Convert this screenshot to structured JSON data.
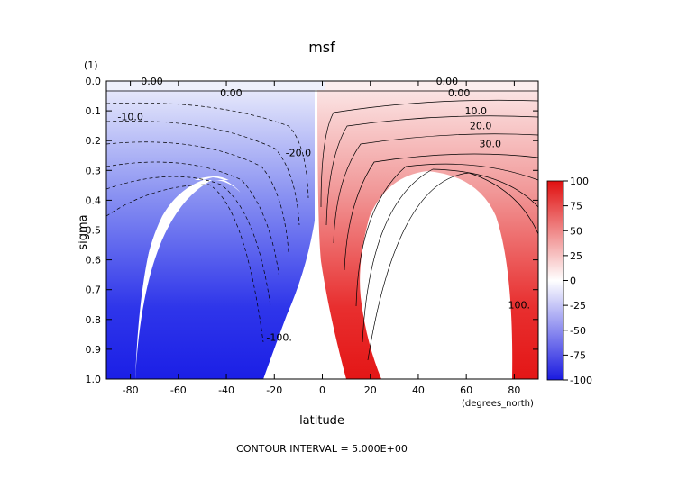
{
  "chart_data": {
    "type": "heatmap",
    "title": "msf",
    "xlabel": "latitude",
    "ylabel": "sigma",
    "x_units": "(degrees_north)",
    "y_units": "(1)",
    "xlim": [
      -90,
      90
    ],
    "ylim": [
      1.0,
      0.0
    ],
    "x_ticks": [
      "-80",
      "-60",
      "-40",
      "-20",
      "0",
      "20",
      "40",
      "60",
      "80"
    ],
    "y_ticks": [
      "0.0",
      "0.1",
      "0.2",
      "0.3",
      "0.4",
      "0.5",
      "0.6",
      "0.7",
      "0.8",
      "0.9",
      "1.0"
    ],
    "colorbar": {
      "ticks": [
        "100",
        "75",
        "50",
        "25",
        "0",
        "-25",
        "-50",
        "-75",
        "-100"
      ],
      "range": [
        -100,
        100
      ],
      "colors": {
        "positive": "#ee1111",
        "zero": "#ffffff",
        "negative": "#1a1aee"
      }
    },
    "contour_interval": 5.0,
    "contour_labels": [
      {
        "text": "0.00",
        "x": -71,
        "y": 0.0
      },
      {
        "text": "0.00",
        "x": -38,
        "y": 0.04
      },
      {
        "text": "0.00",
        "x": 52,
        "y": 0.0
      },
      {
        "text": "0.00",
        "x": 57,
        "y": 0.04
      },
      {
        "text": "-10.0",
        "x": -80,
        "y": 0.12
      },
      {
        "text": "-20.0",
        "x": -10,
        "y": 0.24
      },
      {
        "text": "10.0",
        "x": 64,
        "y": 0.1
      },
      {
        "text": "20.0",
        "x": 66,
        "y": 0.15
      },
      {
        "text": "30.0",
        "x": 70,
        "y": 0.21
      },
      {
        "text": "-100.",
        "x": -18,
        "y": 0.86
      },
      {
        "text": "100.",
        "x": 82,
        "y": 0.75
      }
    ],
    "footer": "CONTOUR INTERVAL = 5.000E+00"
  }
}
